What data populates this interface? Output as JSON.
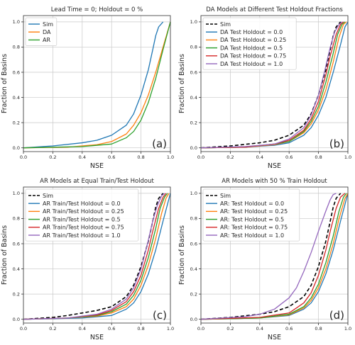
{
  "colors": {
    "Sim": "#1f77b4",
    "Sim_dashed": "#000000",
    "c0": "#1f77b4",
    "c1": "#ff7f0e",
    "c2": "#2ca02c",
    "c3": "#d62728",
    "c4": "#9467bd",
    "grid": "#c8c8c8"
  },
  "chart_data": [
    {
      "type": "line",
      "title": "Lead Time = 0; Holdout = 0 %",
      "xlabel": "NSE",
      "ylabel": "Fraction of Basins",
      "xlim": [
        0.0,
        1.0
      ],
      "ylim": [
        -0.03,
        1.05
      ],
      "xticks": [
        "0.0",
        "0.2",
        "0.4",
        "0.6",
        "0.8",
        "1.0"
      ],
      "yticks": [
        "0.0",
        "0.2",
        "0.4",
        "0.6",
        "0.8",
        "1.0"
      ],
      "grid": true,
      "legend": "top-left",
      "panel_label": "(a)",
      "series": [
        {
          "name": "Sim",
          "color": "#1f77b4",
          "dash": "",
          "x": [
            0.0,
            0.2,
            0.4,
            0.5,
            0.6,
            0.7,
            0.75,
            0.8,
            0.85,
            0.88,
            0.9,
            0.92,
            0.95
          ],
          "y": [
            0.0,
            0.015,
            0.04,
            0.06,
            0.1,
            0.18,
            0.27,
            0.42,
            0.62,
            0.78,
            0.89,
            0.96,
            1.0
          ]
        },
        {
          "name": "DA",
          "color": "#ff7f0e",
          "dash": "",
          "x": [
            0.0,
            0.3,
            0.5,
            0.6,
            0.7,
            0.75,
            0.8,
            0.85,
            0.9,
            0.95,
            1.0
          ],
          "y": [
            0.0,
            0.005,
            0.025,
            0.05,
            0.11,
            0.18,
            0.28,
            0.42,
            0.6,
            0.8,
            1.0
          ]
        },
        {
          "name": "AR",
          "color": "#2ca02c",
          "dash": "",
          "x": [
            0.0,
            0.4,
            0.6,
            0.7,
            0.75,
            0.8,
            0.85,
            0.9,
            0.95,
            1.0
          ],
          "y": [
            0.0,
            0.01,
            0.03,
            0.08,
            0.13,
            0.22,
            0.36,
            0.55,
            0.78,
            1.0
          ]
        }
      ]
    },
    {
      "type": "line",
      "title": "DA Models at Different Test Holdout Fractions",
      "xlabel": "NSE",
      "ylabel": "Fraction of Basins",
      "xlim": [
        0.0,
        1.0
      ],
      "ylim": [
        -0.03,
        1.05
      ],
      "xticks": [
        "0.0",
        "0.2",
        "0.4",
        "0.6",
        "0.8",
        "1.0"
      ],
      "yticks": [
        "0.0",
        "0.2",
        "0.4",
        "0.6",
        "0.8",
        "1.0"
      ],
      "grid": true,
      "legend": "top-left",
      "panel_label": "(b)",
      "series": [
        {
          "name": "Sim",
          "color": "#000000",
          "dash": "5,3",
          "x": [
            0.0,
            0.2,
            0.4,
            0.5,
            0.6,
            0.7,
            0.75,
            0.8,
            0.85,
            0.88,
            0.9,
            0.92,
            0.95
          ],
          "y": [
            0.0,
            0.015,
            0.04,
            0.06,
            0.1,
            0.18,
            0.27,
            0.42,
            0.62,
            0.78,
            0.89,
            0.96,
            1.0
          ]
        },
        {
          "name": "DA Test Holdout = 0.0",
          "color": "#1f77b4",
          "dash": "",
          "x": [
            0.0,
            0.3,
            0.5,
            0.6,
            0.7,
            0.75,
            0.8,
            0.85,
            0.9,
            0.95,
            0.98,
            1.0
          ],
          "y": [
            0.0,
            0.005,
            0.02,
            0.04,
            0.1,
            0.16,
            0.26,
            0.4,
            0.6,
            0.82,
            0.96,
            1.0
          ]
        },
        {
          "name": "DA Test Holdout = 0.25",
          "color": "#ff7f0e",
          "dash": "",
          "x": [
            0.0,
            0.3,
            0.5,
            0.6,
            0.7,
            0.75,
            0.8,
            0.85,
            0.9,
            0.94,
            0.97,
            0.99
          ],
          "y": [
            0.0,
            0.005,
            0.025,
            0.05,
            0.12,
            0.19,
            0.3,
            0.46,
            0.68,
            0.88,
            0.98,
            1.0
          ]
        },
        {
          "name": "DA Test Holdout = 0.5",
          "color": "#2ca02c",
          "dash": "",
          "x": [
            0.0,
            0.3,
            0.5,
            0.6,
            0.7,
            0.75,
            0.8,
            0.85,
            0.9,
            0.93,
            0.96,
            0.98
          ],
          "y": [
            0.0,
            0.005,
            0.03,
            0.05,
            0.13,
            0.21,
            0.33,
            0.52,
            0.75,
            0.9,
            0.98,
            1.0
          ]
        },
        {
          "name": "DA Test Holdout = 0.75",
          "color": "#d62728",
          "dash": "",
          "x": [
            0.0,
            0.3,
            0.5,
            0.6,
            0.7,
            0.75,
            0.8,
            0.85,
            0.88,
            0.92,
            0.95,
            0.97
          ],
          "y": [
            0.0,
            0.005,
            0.03,
            0.06,
            0.14,
            0.23,
            0.37,
            0.58,
            0.73,
            0.9,
            0.98,
            1.0
          ]
        },
        {
          "name": "DA Test Holdout = 1.0",
          "color": "#9467bd",
          "dash": "",
          "x": [
            0.0,
            0.3,
            0.5,
            0.6,
            0.7,
            0.75,
            0.8,
            0.84,
            0.88,
            0.91,
            0.94,
            0.96
          ],
          "y": [
            0.0,
            0.01,
            0.03,
            0.07,
            0.16,
            0.26,
            0.42,
            0.6,
            0.8,
            0.92,
            0.98,
            1.0
          ]
        }
      ]
    },
    {
      "type": "line",
      "title": "AR Models at Equal Train/Test Holdout",
      "xlabel": "NSE",
      "ylabel": "Fraction of Basins",
      "xlim": [
        0.0,
        1.0
      ],
      "ylim": [
        -0.03,
        1.05
      ],
      "xticks": [
        "0.0",
        "0.2",
        "0.4",
        "0.6",
        "0.8",
        "1.0"
      ],
      "yticks": [
        "0.0",
        "0.2",
        "0.4",
        "0.6",
        "0.8",
        "1.0"
      ],
      "grid": true,
      "legend": "top-left",
      "panel_label": "(c)",
      "series": [
        {
          "name": "Sim",
          "color": "#000000",
          "dash": "5,3",
          "x": [
            0.0,
            0.2,
            0.3,
            0.4,
            0.5,
            0.6,
            0.7,
            0.75,
            0.8,
            0.85,
            0.88,
            0.9,
            0.92,
            0.95
          ],
          "y": [
            0.0,
            0.015,
            0.03,
            0.05,
            0.07,
            0.1,
            0.18,
            0.27,
            0.42,
            0.62,
            0.78,
            0.89,
            0.96,
            1.0
          ]
        },
        {
          "name": "AR Train/Test Holdout = 0.0",
          "color": "#1f77b4",
          "dash": "",
          "x": [
            0.0,
            0.4,
            0.6,
            0.7,
            0.75,
            0.8,
            0.85,
            0.9,
            0.95,
            1.0
          ],
          "y": [
            0.0,
            0.01,
            0.03,
            0.08,
            0.13,
            0.22,
            0.36,
            0.55,
            0.78,
            1.0
          ]
        },
        {
          "name": "AR Train/Test Holdout = 0.25",
          "color": "#ff7f0e",
          "dash": "",
          "x": [
            0.0,
            0.3,
            0.5,
            0.6,
            0.7,
            0.75,
            0.8,
            0.85,
            0.9,
            0.94,
            0.97,
            0.99
          ],
          "y": [
            0.0,
            0.01,
            0.025,
            0.05,
            0.1,
            0.16,
            0.27,
            0.43,
            0.64,
            0.84,
            0.96,
            1.0
          ]
        },
        {
          "name": "AR Train/Test Holdout = 0.5",
          "color": "#2ca02c",
          "dash": "",
          "x": [
            0.0,
            0.3,
            0.5,
            0.6,
            0.7,
            0.75,
            0.8,
            0.85,
            0.9,
            0.93,
            0.96,
            0.98
          ],
          "y": [
            0.0,
            0.01,
            0.03,
            0.06,
            0.12,
            0.19,
            0.31,
            0.49,
            0.72,
            0.88,
            0.97,
            1.0
          ]
        },
        {
          "name": "AR Train/Test Holdout = 0.75",
          "color": "#d62728",
          "dash": "",
          "x": [
            0.0,
            0.3,
            0.5,
            0.6,
            0.7,
            0.75,
            0.8,
            0.85,
            0.88,
            0.92,
            0.95,
            0.97
          ],
          "y": [
            0.0,
            0.01,
            0.035,
            0.07,
            0.14,
            0.22,
            0.35,
            0.55,
            0.7,
            0.88,
            0.97,
            1.0
          ]
        },
        {
          "name": "AR Train/Test Holdout = 1.0",
          "color": "#9467bd",
          "dash": "",
          "x": [
            0.0,
            0.3,
            0.5,
            0.6,
            0.7,
            0.75,
            0.8,
            0.84,
            0.88,
            0.91,
            0.94,
            0.96
          ],
          "y": [
            0.0,
            0.01,
            0.04,
            0.08,
            0.16,
            0.25,
            0.4,
            0.58,
            0.78,
            0.9,
            0.98,
            1.0
          ]
        }
      ]
    },
    {
      "type": "line",
      "title": "AR Models with 50 % Train Holdout",
      "xlabel": "NSE",
      "ylabel": "Fraction of Basins",
      "xlim": [
        0.0,
        1.0
      ],
      "ylim": [
        -0.03,
        1.05
      ],
      "xticks": [
        "0.0",
        "0.2",
        "0.4",
        "0.6",
        "0.8",
        "1.0"
      ],
      "yticks": [
        "0.0",
        "0.2",
        "0.4",
        "0.6",
        "0.8",
        "1.0"
      ],
      "grid": true,
      "legend": "top-left",
      "panel_label": "(d)",
      "series": [
        {
          "name": "Sim",
          "color": "#000000",
          "dash": "5,3",
          "x": [
            0.0,
            0.2,
            0.4,
            0.5,
            0.6,
            0.7,
            0.75,
            0.8,
            0.85,
            0.88,
            0.9,
            0.92,
            0.95
          ],
          "y": [
            0.0,
            0.015,
            0.04,
            0.06,
            0.1,
            0.18,
            0.27,
            0.42,
            0.62,
            0.78,
            0.89,
            0.96,
            1.0
          ]
        },
        {
          "name": "AR: Test Holdout = 0.0",
          "color": "#1f77b4",
          "dash": "",
          "x": [
            0.0,
            0.4,
            0.6,
            0.7,
            0.75,
            0.8,
            0.85,
            0.9,
            0.95,
            1.0
          ],
          "y": [
            0.0,
            0.01,
            0.03,
            0.08,
            0.13,
            0.22,
            0.36,
            0.55,
            0.78,
            1.0
          ]
        },
        {
          "name": "AR: Test Holdout = 0.25",
          "color": "#ff7f0e",
          "dash": "",
          "x": [
            0.0,
            0.4,
            0.6,
            0.7,
            0.75,
            0.8,
            0.85,
            0.9,
            0.94,
            0.98,
            1.0
          ],
          "y": [
            0.0,
            0.01,
            0.035,
            0.09,
            0.15,
            0.25,
            0.4,
            0.6,
            0.8,
            0.96,
            1.0
          ]
        },
        {
          "name": "AR: Test Holdout = 0.5",
          "color": "#2ca02c",
          "dash": "",
          "x": [
            0.0,
            0.4,
            0.6,
            0.7,
            0.75,
            0.8,
            0.85,
            0.9,
            0.94,
            0.97,
            0.99
          ],
          "y": [
            0.0,
            0.01,
            0.04,
            0.1,
            0.17,
            0.28,
            0.45,
            0.66,
            0.86,
            0.97,
            1.0
          ]
        },
        {
          "name": "AR: Test Holdout = 0.75",
          "color": "#d62728",
          "dash": "",
          "x": [
            0.0,
            0.4,
            0.6,
            0.7,
            0.75,
            0.8,
            0.85,
            0.88,
            0.92,
            0.95,
            0.98
          ],
          "y": [
            0.0,
            0.015,
            0.05,
            0.13,
            0.21,
            0.35,
            0.55,
            0.7,
            0.88,
            0.97,
            1.0
          ]
        },
        {
          "name": "AR: Test Holdout = 1.0",
          "color": "#9467bd",
          "dash": "",
          "x": [
            0.0,
            0.3,
            0.4,
            0.5,
            0.6,
            0.65,
            0.7,
            0.75,
            0.8,
            0.85,
            0.88,
            0.9,
            0.92
          ],
          "y": [
            0.0,
            0.02,
            0.04,
            0.08,
            0.17,
            0.25,
            0.38,
            0.53,
            0.7,
            0.86,
            0.95,
            0.99,
            1.0
          ]
        }
      ]
    }
  ]
}
